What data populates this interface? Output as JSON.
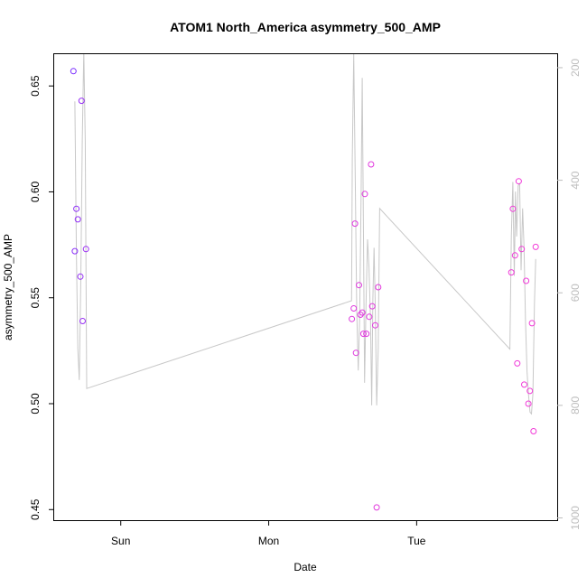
{
  "chart_data": {
    "type": "scatter",
    "title": "ATOM1 North_America asymmetry_500_AMP",
    "xlabel": "Date",
    "ylabel": "asymmetry_500_AMP",
    "x_unit": "days",
    "x_ticks": [
      {
        "label": "Sun",
        "value": 1.0
      },
      {
        "label": "Mon",
        "value": 2.0
      },
      {
        "label": "Tue",
        "value": 3.0
      }
    ],
    "xlim": [
      0.55,
      3.95
    ],
    "ylim": [
      0.445,
      0.665
    ],
    "y_ticks": [
      0.45,
      0.5,
      0.55,
      0.6,
      0.65
    ],
    "y_tick_labels": [
      "0.45",
      "0.50",
      "0.55",
      "0.60",
      "0.65"
    ],
    "y2_lim": [
      1004,
      176
    ],
    "y2_ticks": [
      200,
      400,
      600,
      800,
      1000
    ],
    "y2_tick_labels": [
      "200",
      "400",
      "600",
      "800",
      "1000"
    ],
    "grid": false,
    "colors": {
      "line": "#c8c8c8",
      "point_start": "#7a2cff",
      "point_end": "#f23ad8",
      "right_axis": "#bdbdbd"
    },
    "points": [
      {
        "x": 0.68,
        "y": 0.657
      },
      {
        "x": 0.69,
        "y": 0.572
      },
      {
        "x": 0.7,
        "y": 0.592
      },
      {
        "x": 0.71,
        "y": 0.587
      },
      {
        "x": 0.727,
        "y": 0.56
      },
      {
        "x": 0.735,
        "y": 0.643
      },
      {
        "x": 0.742,
        "y": 0.539
      },
      {
        "x": 0.765,
        "y": 0.573
      },
      {
        "x": 2.562,
        "y": 0.54
      },
      {
        "x": 2.575,
        "y": 0.545
      },
      {
        "x": 2.583,
        "y": 0.585
      },
      {
        "x": 2.59,
        "y": 0.524
      },
      {
        "x": 2.61,
        "y": 0.556
      },
      {
        "x": 2.62,
        "y": 0.542
      },
      {
        "x": 2.633,
        "y": 0.543
      },
      {
        "x": 2.64,
        "y": 0.533
      },
      {
        "x": 2.65,
        "y": 0.599
      },
      {
        "x": 2.66,
        "y": 0.533
      },
      {
        "x": 2.68,
        "y": 0.541
      },
      {
        "x": 2.692,
        "y": 0.613
      },
      {
        "x": 2.7,
        "y": 0.546
      },
      {
        "x": 2.72,
        "y": 0.537
      },
      {
        "x": 2.73,
        "y": 0.451
      },
      {
        "x": 2.74,
        "y": 0.555
      },
      {
        "x": 3.64,
        "y": 0.562
      },
      {
        "x": 3.65,
        "y": 0.592
      },
      {
        "x": 3.665,
        "y": 0.57
      },
      {
        "x": 3.68,
        "y": 0.519
      },
      {
        "x": 3.69,
        "y": 0.605
      },
      {
        "x": 3.71,
        "y": 0.573
      },
      {
        "x": 3.727,
        "y": 0.509
      },
      {
        "x": 3.74,
        "y": 0.558
      },
      {
        "x": 3.755,
        "y": 0.5
      },
      {
        "x": 3.765,
        "y": 0.506
      },
      {
        "x": 3.78,
        "y": 0.538
      },
      {
        "x": 3.79,
        "y": 0.487
      },
      {
        "x": 3.805,
        "y": 0.574
      }
    ],
    "line_y2": [
      {
        "x": 0.69,
        "y": 260
      },
      {
        "x": 0.7,
        "y": 530
      },
      {
        "x": 0.71,
        "y": 700
      },
      {
        "x": 0.72,
        "y": 755
      },
      {
        "x": 0.73,
        "y": 575
      },
      {
        "x": 0.74,
        "y": 330
      },
      {
        "x": 0.75,
        "y": 170
      },
      {
        "x": 0.76,
        "y": 330
      },
      {
        "x": 0.77,
        "y": 770
      },
      {
        "x": 2.56,
        "y": 614
      },
      {
        "x": 2.565,
        "y": 360
      },
      {
        "x": 2.575,
        "y": 176
      },
      {
        "x": 2.585,
        "y": 400
      },
      {
        "x": 2.595,
        "y": 630
      },
      {
        "x": 2.605,
        "y": 738
      },
      {
        "x": 2.615,
        "y": 640
      },
      {
        "x": 2.625,
        "y": 420
      },
      {
        "x": 2.632,
        "y": 218
      },
      {
        "x": 2.64,
        "y": 480
      },
      {
        "x": 2.648,
        "y": 760
      },
      {
        "x": 2.658,
        "y": 620
      },
      {
        "x": 2.668,
        "y": 505
      },
      {
        "x": 2.678,
        "y": 555
      },
      {
        "x": 2.688,
        "y": 650
      },
      {
        "x": 2.696,
        "y": 800
      },
      {
        "x": 2.704,
        "y": 610
      },
      {
        "x": 2.712,
        "y": 520
      },
      {
        "x": 2.72,
        "y": 620
      },
      {
        "x": 2.73,
        "y": 800
      },
      {
        "x": 2.74,
        "y": 700
      },
      {
        "x": 2.75,
        "y": 450
      },
      {
        "x": 3.63,
        "y": 700
      },
      {
        "x": 3.64,
        "y": 500
      },
      {
        "x": 3.65,
        "y": 403
      },
      {
        "x": 3.66,
        "y": 570
      },
      {
        "x": 3.668,
        "y": 420
      },
      {
        "x": 3.676,
        "y": 500
      },
      {
        "x": 3.686,
        "y": 410
      },
      {
        "x": 3.696,
        "y": 405
      },
      {
        "x": 3.706,
        "y": 560
      },
      {
        "x": 3.716,
        "y": 450
      },
      {
        "x": 3.726,
        "y": 520
      },
      {
        "x": 3.736,
        "y": 650
      },
      {
        "x": 3.746,
        "y": 740
      },
      {
        "x": 3.756,
        "y": 780
      },
      {
        "x": 3.766,
        "y": 812
      },
      {
        "x": 3.776,
        "y": 815
      },
      {
        "x": 3.786,
        "y": 780
      },
      {
        "x": 3.796,
        "y": 620
      },
      {
        "x": 3.805,
        "y": 540
      }
    ]
  }
}
